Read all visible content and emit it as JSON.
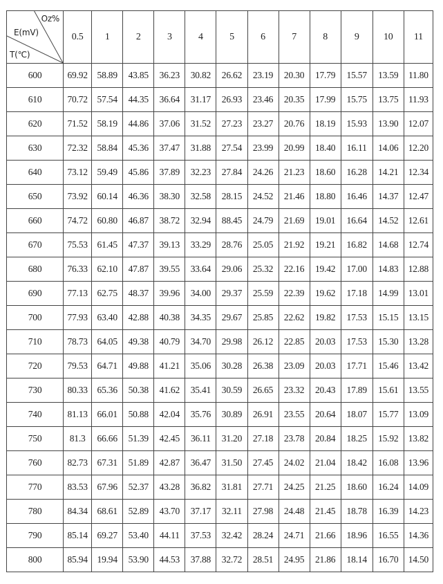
{
  "header": {
    "corner": {
      "column_label": "Oz%",
      "value_label": "E(mV)",
      "row_label": "T(℃)"
    },
    "columns": [
      "0.5",
      "1",
      "2",
      "3",
      "4",
      "5",
      "6",
      "7",
      "8",
      "9",
      "10",
      "11"
    ]
  },
  "rows": [
    {
      "t": "600",
      "values": [
        "69.92",
        "58.89",
        "43.85",
        "36.23",
        "30.82",
        "26.62",
        "23.19",
        "20.30",
        "17.79",
        "15.57",
        "13.59",
        "11.80"
      ]
    },
    {
      "t": "610",
      "values": [
        "70.72",
        "57.54",
        "44.35",
        "36.64",
        "31.17",
        "26.93",
        "23.46",
        "20.35",
        "17.99",
        "15.75",
        "13.75",
        "11.93"
      ]
    },
    {
      "t": "620",
      "values": [
        "71.52",
        "58.19",
        "44.86",
        "37.06",
        "31.52",
        "27.23",
        "23.27",
        "20.76",
        "18.19",
        "15.93",
        "13.90",
        "12.07"
      ]
    },
    {
      "t": "630",
      "values": [
        "72.32",
        "58.84",
        "45.36",
        "37.47",
        "31.88",
        "27.54",
        "23.99",
        "20.99",
        "18.40",
        "16.11",
        "14.06",
        "12.20"
      ]
    },
    {
      "t": "640",
      "values": [
        "73.12",
        "59.49",
        "45.86",
        "37.89",
        "32.23",
        "27.84",
        "24.26",
        "21.23",
        "18.60",
        "16.28",
        "14.21",
        "12.34"
      ]
    },
    {
      "t": "650",
      "values": [
        "73.92",
        "60.14",
        "46.36",
        "38.30",
        "32.58",
        "28.15",
        "24.52",
        "21.46",
        "18.80",
        "16.46",
        "14.37",
        "12.47"
      ]
    },
    {
      "t": "660",
      "values": [
        "74.72",
        "60.80",
        "46.87",
        "38.72",
        "32.94",
        "88.45",
        "24.79",
        "21.69",
        "19.01",
        "16.64",
        "14.52",
        "12.61"
      ]
    },
    {
      "t": "670",
      "values": [
        "75.53",
        "61.45",
        "47.37",
        "39.13",
        "33.29",
        "28.76",
        "25.05",
        "21.92",
        "19.21",
        "16.82",
        "14.68",
        "12.74"
      ]
    },
    {
      "t": "680",
      "values": [
        "76.33",
        "62.10",
        "47.87",
        "39.55",
        "33.64",
        "29.06",
        "25.32",
        "22.16",
        "19.42",
        "17.00",
        "14.83",
        "12.88"
      ]
    },
    {
      "t": "690",
      "values": [
        "77.13",
        "62.75",
        "48.37",
        "39.96",
        "34.00",
        "29.37",
        "25.59",
        "22.39",
        "19.62",
        "17.18",
        "14.99",
        "13.01"
      ]
    },
    {
      "t": "700",
      "values": [
        "77.93",
        "63.40",
        "42.88",
        "40.38",
        "34.35",
        "29.67",
        "25.85",
        "22.62",
        "19.82",
        "17.53",
        "15.15",
        "13.15"
      ]
    },
    {
      "t": "710",
      "values": [
        "78.73",
        "64.05",
        "49.38",
        "40.79",
        "34.70",
        "29.98",
        "26.12",
        "22.85",
        "20.03",
        "17.53",
        "15.30",
        "13.28"
      ]
    },
    {
      "t": "720",
      "values": [
        "79.53",
        "64.71",
        "49.88",
        "41.21",
        "35.06",
        "30.28",
        "26.38",
        "23.09",
        "20.03",
        "17.71",
        "15.46",
        "13.42"
      ]
    },
    {
      "t": "730",
      "values": [
        "80.33",
        "65.36",
        "50.38",
        "41.62",
        "35.41",
        "30.59",
        "26.65",
        "23.32",
        "20.43",
        "17.89",
        "15.61",
        "13.55"
      ]
    },
    {
      "t": "740",
      "values": [
        "81.13",
        "66.01",
        "50.88",
        "42.04",
        "35.76",
        "30.89",
        "26.91",
        "23.55",
        "20.64",
        "18.07",
        "15.77",
        "13.09"
      ]
    },
    {
      "t": "750",
      "values": [
        "81.3",
        "66.66",
        "51.39",
        "42.45",
        "36.11",
        "31.20",
        "27.18",
        "23.78",
        "20.84",
        "18.25",
        "15.92",
        "13.82"
      ]
    },
    {
      "t": "760",
      "values": [
        "82.73",
        "67.31",
        "51.89",
        "42.87",
        "36.47",
        "31.50",
        "27.45",
        "24.02",
        "21.04",
        "18.42",
        "16.08",
        "13.96"
      ]
    },
    {
      "t": "770",
      "values": [
        "83.53",
        "67.96",
        "52.37",
        "43.28",
        "36.82",
        "31.81",
        "27.71",
        "24.25",
        "21.25",
        "18.60",
        "16.24",
        "14.09"
      ]
    },
    {
      "t": "780",
      "values": [
        "84.34",
        "68.61",
        "52.89",
        "43.70",
        "37.17",
        "32.11",
        "27.98",
        "24.48",
        "21.45",
        "18.78",
        "16.39",
        "14.23"
      ]
    },
    {
      "t": "790",
      "values": [
        "85.14",
        "69.27",
        "53.40",
        "44.11",
        "37.53",
        "32.42",
        "28.24",
        "24.71",
        "21.66",
        "18.96",
        "16.55",
        "14.36"
      ]
    },
    {
      "t": "800",
      "values": [
        "85.94",
        "19.94",
        "53.90",
        "44.53",
        "37.88",
        "32.72",
        "28.51",
        "24.95",
        "21.86",
        "18.14",
        "16.70",
        "14.50"
      ]
    }
  ]
}
